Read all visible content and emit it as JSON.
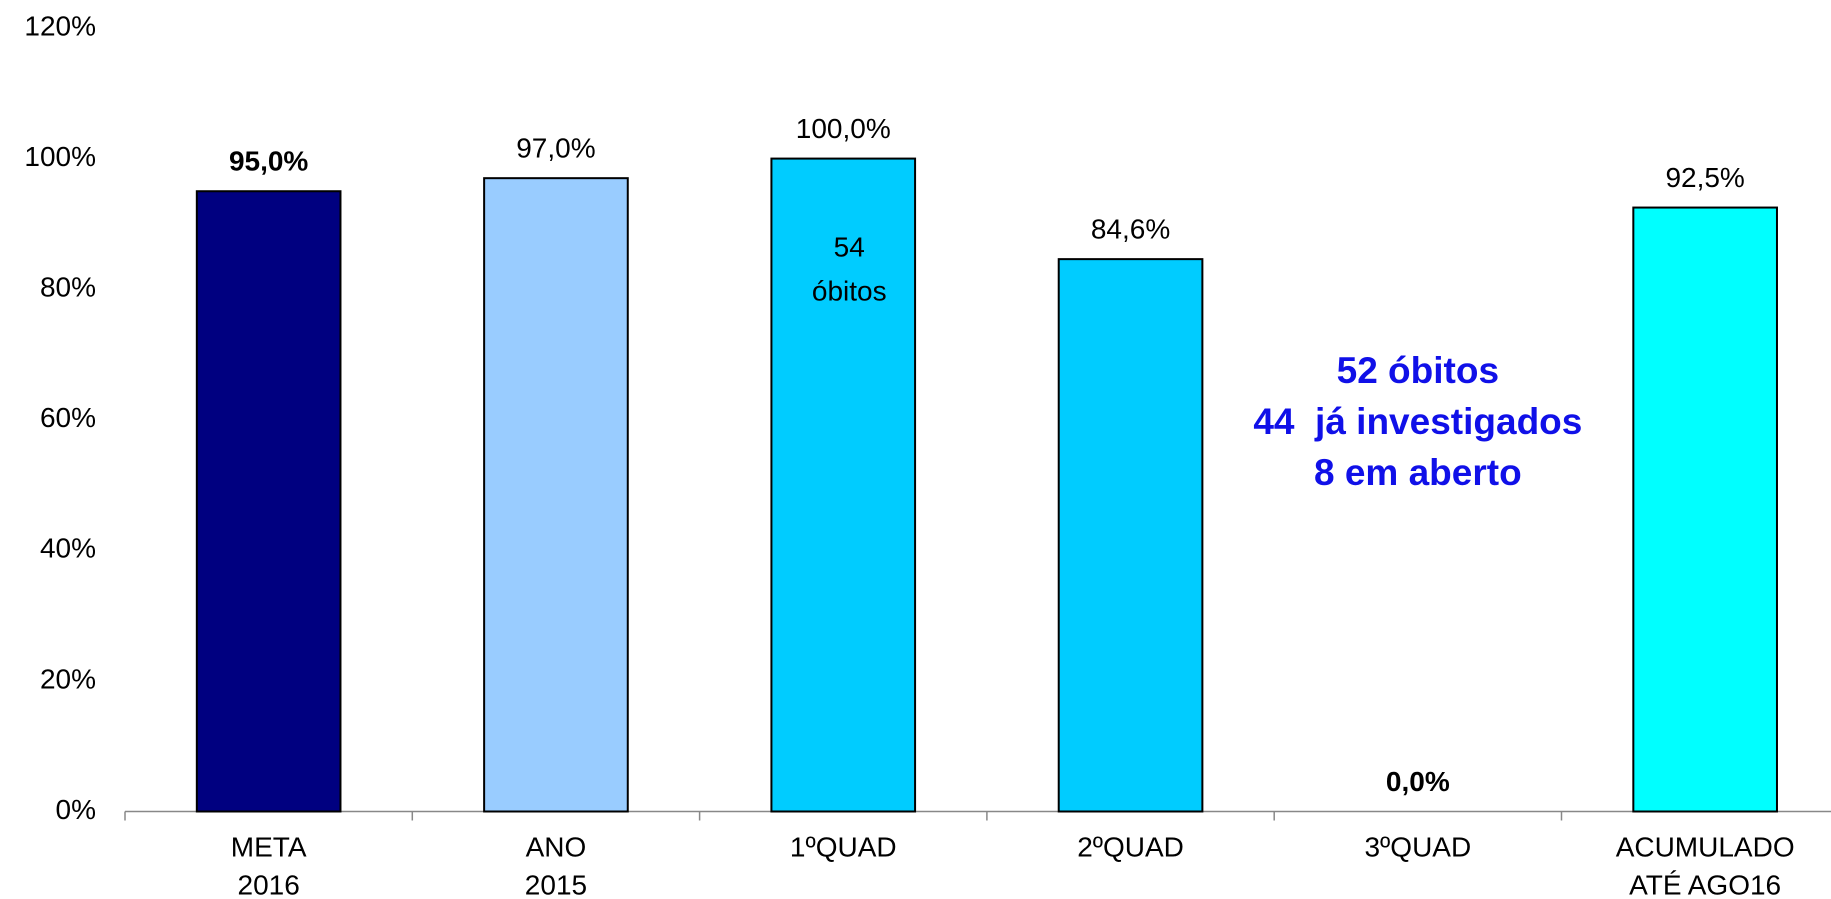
{
  "chart_data": {
    "type": "bar",
    "categories": [
      [
        "META",
        "2016"
      ],
      [
        "ANO",
        "2015"
      ],
      [
        "1ºQUAD"
      ],
      [
        "2ºQUAD"
      ],
      [
        "3ºQUAD"
      ],
      [
        "ACUMULADO",
        "ATÉ AGO16"
      ]
    ],
    "values": [
      95.0,
      97.0,
      100.0,
      84.6,
      0.0,
      92.5
    ],
    "value_labels": [
      "95,0%",
      "97,0%",
      "100,0%",
      "84,6%",
      "0,0%",
      "92,5%"
    ],
    "value_label_weight": [
      "bold",
      "normal",
      "normal",
      "normal",
      "bold",
      "normal"
    ],
    "colors": [
      "#000080",
      "#99ccff",
      "#00ccff",
      "#00ccff",
      "#00ccff",
      "#00ffff"
    ],
    "ylim": [
      0,
      120
    ],
    "yticks": [
      {
        "value": 0,
        "label": "0%"
      },
      {
        "value": 20,
        "label": "20%"
      },
      {
        "value": 40,
        "label": "40%"
      },
      {
        "value": 60,
        "label": "60%"
      },
      {
        "value": 80,
        "label": "80%"
      },
      {
        "value": 100,
        "label": "100%"
      },
      {
        "value": 120,
        "label": "120%"
      }
    ],
    "grid": false,
    "annotations": [
      {
        "lines": [
          "54",
          "óbitos"
        ]
      },
      {
        "lines": [
          "52 óbitos",
          "44  já investigados",
          "8 em aberto"
        ]
      }
    ]
  }
}
